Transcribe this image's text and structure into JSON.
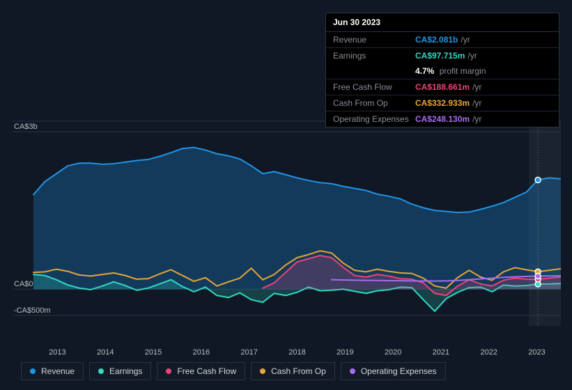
{
  "chart": {
    "type": "area",
    "background_color": "#0f1824",
    "plot_background": "#0f1824",
    "grid_color": "#2a3644",
    "highlight_band": {
      "from": 2023.3,
      "to": 2024.0,
      "fill": "rgba(255,255,255,0.05)"
    },
    "text_color": "#b8bdc1",
    "font_size_axis": 11,
    "x": {
      "min": 2012.5,
      "max": 2024.0,
      "ticks": [
        "2013",
        "2014",
        "2015",
        "2016",
        "2017",
        "2018",
        "2019",
        "2020",
        "2021",
        "2022",
        "2023"
      ]
    },
    "y": {
      "min": -700,
      "max": 3200,
      "unit": "CA$ millions",
      "ticks": [
        {
          "value": 3000,
          "label": "CA$3b"
        },
        {
          "value": 0,
          "label": "CA$0"
        },
        {
          "value": -500,
          "label": "-CA$500m"
        }
      ]
    },
    "marker_line_x": 2023.5,
    "series": [
      {
        "id": "revenue",
        "label": "Revenue",
        "color": "#2294e6",
        "fill_opacity": 0.28,
        "line_width": 2,
        "points": [
          [
            2012.5,
            1800
          ],
          [
            2012.75,
            2050
          ],
          [
            2013,
            2200
          ],
          [
            2013.25,
            2350
          ],
          [
            2013.5,
            2400
          ],
          [
            2013.75,
            2400
          ],
          [
            2014,
            2380
          ],
          [
            2014.25,
            2390
          ],
          [
            2014.5,
            2420
          ],
          [
            2014.75,
            2450
          ],
          [
            2015,
            2470
          ],
          [
            2015.25,
            2530
          ],
          [
            2015.5,
            2600
          ],
          [
            2015.75,
            2680
          ],
          [
            2016,
            2700
          ],
          [
            2016.25,
            2650
          ],
          [
            2016.5,
            2580
          ],
          [
            2016.75,
            2540
          ],
          [
            2017,
            2480
          ],
          [
            2017.25,
            2350
          ],
          [
            2017.5,
            2200
          ],
          [
            2017.75,
            2240
          ],
          [
            2018,
            2180
          ],
          [
            2018.25,
            2120
          ],
          [
            2018.5,
            2070
          ],
          [
            2018.75,
            2030
          ],
          [
            2019,
            2010
          ],
          [
            2019.25,
            1960
          ],
          [
            2019.5,
            1920
          ],
          [
            2019.75,
            1880
          ],
          [
            2020,
            1810
          ],
          [
            2020.25,
            1770
          ],
          [
            2020.5,
            1720
          ],
          [
            2020.75,
            1620
          ],
          [
            2021,
            1550
          ],
          [
            2021.25,
            1500
          ],
          [
            2021.5,
            1480
          ],
          [
            2021.75,
            1460
          ],
          [
            2022,
            1470
          ],
          [
            2022.25,
            1520
          ],
          [
            2022.5,
            1580
          ],
          [
            2022.75,
            1650
          ],
          [
            2023,
            1750
          ],
          [
            2023.25,
            1850
          ],
          [
            2023.5,
            2081
          ],
          [
            2023.75,
            2120
          ],
          [
            2024,
            2100
          ]
        ]
      },
      {
        "id": "earnings",
        "label": "Earnings",
        "color": "#32d9c3",
        "fill_opacity": 0.22,
        "line_width": 2,
        "points": [
          [
            2012.5,
            280
          ],
          [
            2012.75,
            260
          ],
          [
            2013,
            180
          ],
          [
            2013.25,
            80
          ],
          [
            2013.5,
            20
          ],
          [
            2013.75,
            -10
          ],
          [
            2014,
            60
          ],
          [
            2014.25,
            140
          ],
          [
            2014.5,
            70
          ],
          [
            2014.75,
            -20
          ],
          [
            2015,
            20
          ],
          [
            2015.25,
            100
          ],
          [
            2015.5,
            180
          ],
          [
            2015.75,
            50
          ],
          [
            2016,
            -50
          ],
          [
            2016.25,
            40
          ],
          [
            2016.5,
            -120
          ],
          [
            2016.75,
            -160
          ],
          [
            2017,
            -70
          ],
          [
            2017.25,
            -200
          ],
          [
            2017.5,
            -250
          ],
          [
            2017.75,
            -80
          ],
          [
            2018,
            -120
          ],
          [
            2018.25,
            -60
          ],
          [
            2018.5,
            40
          ],
          [
            2018.75,
            -30
          ],
          [
            2019,
            -20
          ],
          [
            2019.25,
            0
          ],
          [
            2019.5,
            -40
          ],
          [
            2019.75,
            -80
          ],
          [
            2020,
            -30
          ],
          [
            2020.25,
            -10
          ],
          [
            2020.5,
            40
          ],
          [
            2020.75,
            30
          ],
          [
            2021,
            -200
          ],
          [
            2021.25,
            -420
          ],
          [
            2021.5,
            -180
          ],
          [
            2021.75,
            -60
          ],
          [
            2022,
            30
          ],
          [
            2022.25,
            40
          ],
          [
            2022.5,
            -50
          ],
          [
            2022.75,
            80
          ],
          [
            2023,
            60
          ],
          [
            2023.25,
            70
          ],
          [
            2023.5,
            97.715
          ],
          [
            2023.75,
            100
          ],
          [
            2024,
            110
          ]
        ]
      },
      {
        "id": "fcf",
        "label": "Free Cash Flow",
        "color": "#e9447a",
        "fill_opacity": 0.22,
        "line_width": 2,
        "points": [
          [
            2017.5,
            20
          ],
          [
            2017.75,
            120
          ],
          [
            2018,
            320
          ],
          [
            2018.25,
            520
          ],
          [
            2018.5,
            580
          ],
          [
            2018.75,
            640
          ],
          [
            2019,
            600
          ],
          [
            2019.25,
            420
          ],
          [
            2019.5,
            260
          ],
          [
            2019.75,
            230
          ],
          [
            2020,
            280
          ],
          [
            2020.25,
            250
          ],
          [
            2020.5,
            200
          ],
          [
            2020.75,
            190
          ],
          [
            2021,
            120
          ],
          [
            2021.25,
            -80
          ],
          [
            2021.5,
            -120
          ],
          [
            2021.75,
            60
          ],
          [
            2022,
            180
          ],
          [
            2022.25,
            100
          ],
          [
            2022.5,
            60
          ],
          [
            2022.75,
            170
          ],
          [
            2023,
            210
          ],
          [
            2023.25,
            190
          ],
          [
            2023.5,
            188.661
          ],
          [
            2023.75,
            210
          ],
          [
            2024,
            230
          ]
        ]
      },
      {
        "id": "cfo",
        "label": "Cash From Op",
        "color": "#e5a63a",
        "fill_opacity": 0,
        "line_width": 2,
        "points": [
          [
            2012.5,
            320
          ],
          [
            2012.75,
            330
          ],
          [
            2013,
            380
          ],
          [
            2013.25,
            340
          ],
          [
            2013.5,
            270
          ],
          [
            2013.75,
            250
          ],
          [
            2014,
            280
          ],
          [
            2014.25,
            310
          ],
          [
            2014.5,
            260
          ],
          [
            2014.75,
            190
          ],
          [
            2015,
            200
          ],
          [
            2015.25,
            290
          ],
          [
            2015.5,
            370
          ],
          [
            2015.75,
            260
          ],
          [
            2016,
            150
          ],
          [
            2016.25,
            220
          ],
          [
            2016.5,
            60
          ],
          [
            2016.75,
            140
          ],
          [
            2017,
            210
          ],
          [
            2017.25,
            400
          ],
          [
            2017.5,
            180
          ],
          [
            2017.75,
            280
          ],
          [
            2018,
            460
          ],
          [
            2018.25,
            600
          ],
          [
            2018.5,
            660
          ],
          [
            2018.75,
            730
          ],
          [
            2019,
            690
          ],
          [
            2019.25,
            500
          ],
          [
            2019.5,
            360
          ],
          [
            2019.75,
            330
          ],
          [
            2020,
            380
          ],
          [
            2020.25,
            340
          ],
          [
            2020.5,
            310
          ],
          [
            2020.75,
            300
          ],
          [
            2021,
            210
          ],
          [
            2021.25,
            60
          ],
          [
            2021.5,
            20
          ],
          [
            2021.75,
            220
          ],
          [
            2022,
            360
          ],
          [
            2022.25,
            230
          ],
          [
            2022.5,
            170
          ],
          [
            2022.75,
            330
          ],
          [
            2023,
            410
          ],
          [
            2023.25,
            370
          ],
          [
            2023.5,
            332.933
          ],
          [
            2023.75,
            360
          ],
          [
            2024,
            390
          ]
        ]
      },
      {
        "id": "opex",
        "label": "Operating Expenses",
        "color": "#a66df0",
        "fill_opacity": 0,
        "line_width": 2,
        "points": [
          [
            2019,
            180
          ],
          [
            2019.25,
            175
          ],
          [
            2019.5,
            170
          ],
          [
            2019.75,
            168
          ],
          [
            2020,
            165
          ],
          [
            2020.25,
            162
          ],
          [
            2020.5,
            160
          ],
          [
            2020.75,
            158
          ],
          [
            2021,
            156
          ],
          [
            2021.25,
            155
          ],
          [
            2021.5,
            158
          ],
          [
            2021.75,
            165
          ],
          [
            2022,
            180
          ],
          [
            2022.25,
            195
          ],
          [
            2022.5,
            210
          ],
          [
            2022.75,
            225
          ],
          [
            2023,
            235
          ],
          [
            2023.25,
            242
          ],
          [
            2023.5,
            248.13
          ],
          [
            2023.75,
            252
          ],
          [
            2024,
            255
          ]
        ]
      }
    ],
    "legend": [
      {
        "key": "revenue",
        "label": "Revenue",
        "color": "#2294e6"
      },
      {
        "key": "earnings",
        "label": "Earnings",
        "color": "#32d9c3"
      },
      {
        "key": "fcf",
        "label": "Free Cash Flow",
        "color": "#e9447a"
      },
      {
        "key": "cfo",
        "label": "Cash From Op",
        "color": "#e5a63a"
      },
      {
        "key": "opex",
        "label": "Operating Expenses",
        "color": "#a66df0"
      }
    ]
  },
  "tooltip": {
    "date": "Jun 30 2023",
    "rows": [
      {
        "label": "Revenue",
        "value": "CA$2.081b",
        "suffix": "/yr",
        "color": "#2294e6"
      },
      {
        "label": "Earnings",
        "value": "CA$97.715m",
        "suffix": "/yr",
        "color": "#32d9c3"
      }
    ],
    "profit_margin": {
      "value": "4.7%",
      "label": "profit margin"
    },
    "rows2": [
      {
        "label": "Free Cash Flow",
        "value": "CA$188.661m",
        "suffix": "/yr",
        "color": "#e9447a"
      },
      {
        "label": "Cash From Op",
        "value": "CA$332.933m",
        "suffix": "/yr",
        "color": "#e5a63a"
      },
      {
        "label": "Operating Expenses",
        "value": "CA$248.130m",
        "suffix": "/yr",
        "color": "#a66df0"
      }
    ]
  }
}
